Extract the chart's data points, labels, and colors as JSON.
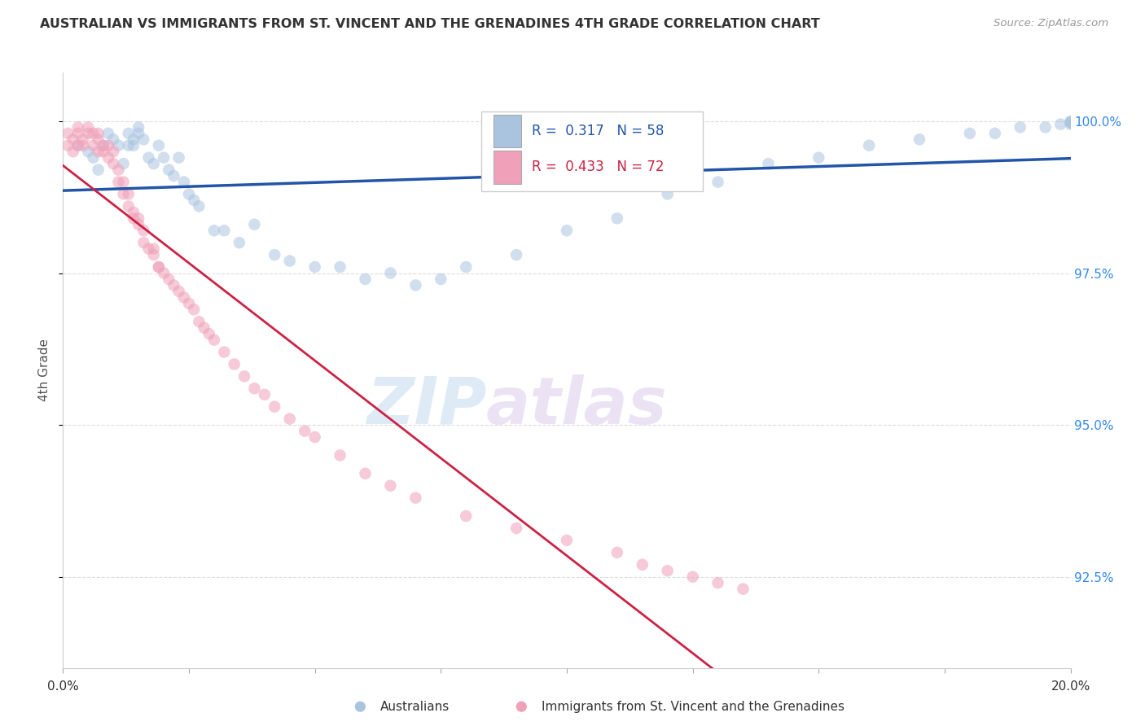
{
  "title": "AUSTRALIAN VS IMMIGRANTS FROM ST. VINCENT AND THE GRENADINES 4TH GRADE CORRELATION CHART",
  "source": "Source: ZipAtlas.com",
  "ylabel": "4th Grade",
  "ytick_labels": [
    "100.0%",
    "97.5%",
    "95.0%",
    "92.5%"
  ],
  "ytick_values": [
    1.0,
    0.975,
    0.95,
    0.925
  ],
  "xlim": [
    0.0,
    0.2
  ],
  "ylim": [
    0.91,
    1.008
  ],
  "r_blue": "0.317",
  "n_blue": "58",
  "r_pink": "0.433",
  "n_pink": "72",
  "legend_label_blue": "Australians",
  "legend_label_pink": "Immigrants from St. Vincent and the Grenadines",
  "blue_color": "#aac4e0",
  "blue_line_color": "#2255aa",
  "pink_color": "#f0a0b8",
  "pink_line_color": "#cc2244",
  "dot_size": 110,
  "dot_alpha": 0.55,
  "watermark_zip": "ZIP",
  "watermark_atlas": "atlas",
  "blue_scatter_x": [
    0.003,
    0.005,
    0.006,
    0.007,
    0.008,
    0.009,
    0.01,
    0.011,
    0.012,
    0.013,
    0.013,
    0.014,
    0.014,
    0.015,
    0.015,
    0.016,
    0.017,
    0.018,
    0.019,
    0.02,
    0.021,
    0.022,
    0.023,
    0.024,
    0.025,
    0.026,
    0.027,
    0.03,
    0.032,
    0.035,
    0.038,
    0.042,
    0.045,
    0.05,
    0.055,
    0.06,
    0.065,
    0.07,
    0.075,
    0.08,
    0.09,
    0.1,
    0.11,
    0.12,
    0.13,
    0.14,
    0.15,
    0.16,
    0.17,
    0.18,
    0.185,
    0.19,
    0.195,
    0.198,
    0.2,
    0.2,
    0.2,
    0.2
  ],
  "blue_scatter_y": [
    0.996,
    0.995,
    0.994,
    0.992,
    0.996,
    0.998,
    0.997,
    0.996,
    0.993,
    0.998,
    0.996,
    0.996,
    0.997,
    0.999,
    0.998,
    0.997,
    0.994,
    0.993,
    0.996,
    0.994,
    0.992,
    0.991,
    0.994,
    0.99,
    0.988,
    0.987,
    0.986,
    0.982,
    0.982,
    0.98,
    0.983,
    0.978,
    0.977,
    0.976,
    0.976,
    0.974,
    0.975,
    0.973,
    0.974,
    0.976,
    0.978,
    0.982,
    0.984,
    0.988,
    0.99,
    0.993,
    0.994,
    0.996,
    0.997,
    0.998,
    0.998,
    0.999,
    0.999,
    0.9995,
    0.9995,
    0.9998,
    0.9998,
    1.0
  ],
  "pink_scatter_x": [
    0.001,
    0.001,
    0.002,
    0.002,
    0.003,
    0.003,
    0.003,
    0.004,
    0.004,
    0.005,
    0.005,
    0.006,
    0.006,
    0.007,
    0.007,
    0.007,
    0.008,
    0.008,
    0.009,
    0.009,
    0.01,
    0.01,
    0.011,
    0.011,
    0.012,
    0.012,
    0.013,
    0.013,
    0.014,
    0.014,
    0.015,
    0.015,
    0.016,
    0.016,
    0.017,
    0.018,
    0.018,
    0.019,
    0.019,
    0.02,
    0.021,
    0.022,
    0.023,
    0.024,
    0.025,
    0.026,
    0.027,
    0.028,
    0.029,
    0.03,
    0.032,
    0.034,
    0.036,
    0.038,
    0.04,
    0.042,
    0.045,
    0.048,
    0.05,
    0.055,
    0.06,
    0.065,
    0.07,
    0.08,
    0.09,
    0.1,
    0.11,
    0.115,
    0.12,
    0.125,
    0.13,
    0.135
  ],
  "pink_scatter_y": [
    0.998,
    0.996,
    0.997,
    0.995,
    0.999,
    0.998,
    0.996,
    0.997,
    0.996,
    0.999,
    0.998,
    0.998,
    0.996,
    0.998,
    0.997,
    0.995,
    0.996,
    0.995,
    0.996,
    0.994,
    0.995,
    0.993,
    0.992,
    0.99,
    0.99,
    0.988,
    0.988,
    0.986,
    0.985,
    0.984,
    0.984,
    0.983,
    0.982,
    0.98,
    0.979,
    0.979,
    0.978,
    0.976,
    0.976,
    0.975,
    0.974,
    0.973,
    0.972,
    0.971,
    0.97,
    0.969,
    0.967,
    0.966,
    0.965,
    0.964,
    0.962,
    0.96,
    0.958,
    0.956,
    0.955,
    0.953,
    0.951,
    0.949,
    0.948,
    0.945,
    0.942,
    0.94,
    0.938,
    0.935,
    0.933,
    0.931,
    0.929,
    0.927,
    0.926,
    0.925,
    0.924,
    0.923
  ]
}
